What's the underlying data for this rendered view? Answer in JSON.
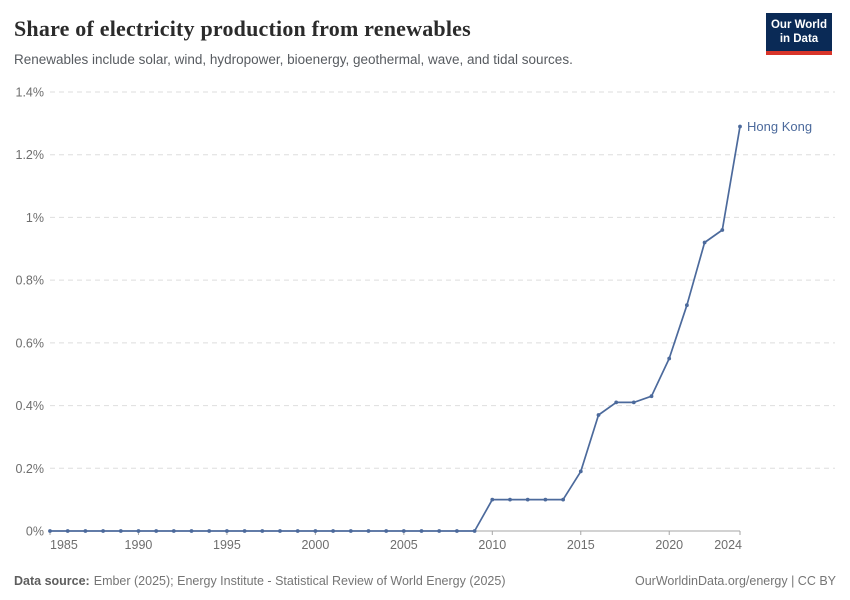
{
  "header": {
    "title": "Share of electricity production from renewables",
    "subtitle": "Renewables include solar, wind, hydropower, bioenergy, geothermal, wave, and tidal sources.",
    "logo": {
      "line1": "Our World",
      "line2": "in Data",
      "bg_color": "#0A2A56",
      "accent_color": "#D8352A"
    }
  },
  "chart_data": {
    "type": "line",
    "title": "Share of electricity production from renewables",
    "x": [
      1985,
      1986,
      1987,
      1988,
      1989,
      1990,
      1991,
      1992,
      1993,
      1994,
      1995,
      1996,
      1997,
      1998,
      1999,
      2000,
      2001,
      2002,
      2003,
      2004,
      2005,
      2006,
      2007,
      2008,
      2009,
      2010,
      2011,
      2012,
      2013,
      2014,
      2015,
      2016,
      2017,
      2018,
      2019,
      2020,
      2021,
      2022,
      2023,
      2024
    ],
    "series": [
      {
        "name": "Hong Kong",
        "color": "#4C6A9C",
        "values": [
          0,
          0,
          0,
          0,
          0,
          0,
          0,
          0,
          0,
          0,
          0,
          0,
          0,
          0,
          0,
          0,
          0,
          0,
          0,
          0,
          0,
          0,
          0,
          0,
          0,
          0.1,
          0.1,
          0.1,
          0.1,
          0.1,
          0.19,
          0.37,
          0.41,
          0.41,
          0.43,
          0.55,
          0.72,
          0.92,
          0.96,
          1.29
        ]
      }
    ],
    "end_label": "Hong Kong",
    "x_ticks": [
      "1985",
      "1990",
      "1995",
      "2000",
      "2005",
      "2010",
      "2015",
      "2020",
      "2024"
    ],
    "y_ticks": [
      "0%",
      "0.2%",
      "0.4%",
      "0.6%",
      "0.8%",
      "1%",
      "1.2%",
      "1.4%"
    ],
    "xlim": [
      1985,
      2024
    ],
    "ylim": [
      0,
      1.4
    ],
    "grid": "horizontal-dashed",
    "legend_position": "line-end-label",
    "unit": "%"
  },
  "footer": {
    "source_label": "Data source:",
    "source_text": "Ember (2025); Energy Institute - Statistical Review of World Energy (2025)",
    "right_text": "OurWorldinData.org/energy | CC BY"
  }
}
